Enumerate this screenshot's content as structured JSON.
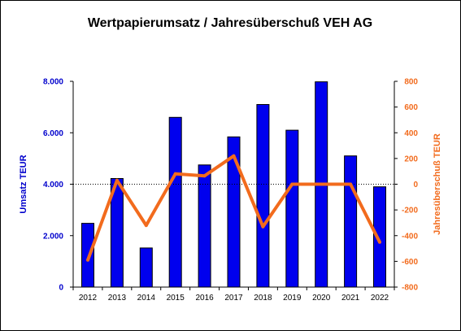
{
  "chart_data": {
    "type": "bar+line",
    "title": "Wertpapierumsatz / Jahresüberschuß VEH AG",
    "categories": [
      "2012",
      "2013",
      "2014",
      "2015",
      "2016",
      "2017",
      "2018",
      "2019",
      "2020",
      "2021",
      "2022"
    ],
    "series": [
      {
        "name": "",
        "type": "bar",
        "axis": "left",
        "values": [
          2480,
          4220,
          1520,
          6600,
          4750,
          5840,
          7100,
          6100,
          7980,
          5100,
          3900
        ]
      },
      {
        "name": "",
        "type": "line",
        "axis": "right",
        "values": [
          -590,
          30,
          -320,
          80,
          65,
          220,
          -330,
          0,
          0,
          0,
          -450
        ]
      }
    ],
    "left_axis": {
      "label": "Umsatz TEUR",
      "ylim": [
        0,
        8000
      ],
      "ticks": [
        0,
        2000,
        4000,
        6000,
        8000
      ],
      "tick_labels": [
        "0",
        "2.000",
        "4.000",
        "6.000",
        "8.000"
      ]
    },
    "right_axis": {
      "label": "Jahresüberschuß TEUR",
      "ylim": [
        -800,
        800
      ],
      "ticks": [
        -800,
        -600,
        -400,
        -200,
        0,
        200,
        400,
        600,
        800
      ],
      "tick_labels": [
        "-800",
        "-600",
        "-400",
        "-200",
        "0",
        "200",
        "400",
        "600",
        "800"
      ]
    },
    "reference_line": {
      "axis": "left",
      "value": 4000,
      "style": "dotted"
    },
    "grid": false,
    "colors": {
      "bar": "#0000ee",
      "line": "#f26b1d",
      "left_axis_text": "#0000cc",
      "right_axis_text": "#f26b1d"
    }
  }
}
